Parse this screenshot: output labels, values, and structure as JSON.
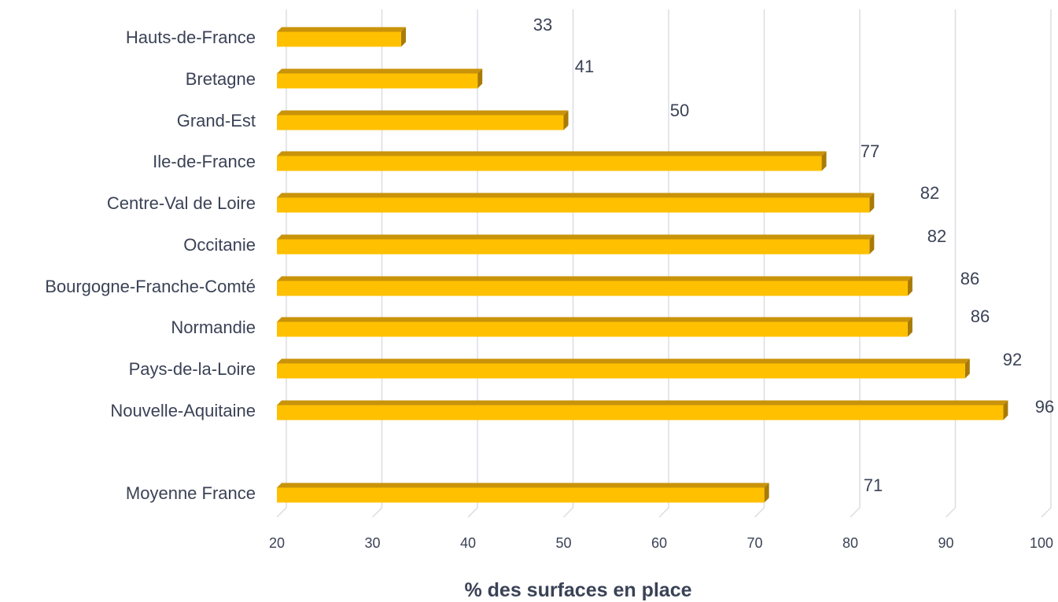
{
  "chart_data": {
    "type": "bar",
    "orientation": "horizontal",
    "categories": [
      "Hauts-de-France",
      "Bretagne",
      "Grand-Est",
      "Ile-de-France",
      "Centre-Val de Loire",
      "Occitanie",
      "Bourgogne-Franche-Comté",
      "Normandie",
      "Pays-de-la-Loire",
      "Nouvelle-Aquitaine",
      "Moyenne France"
    ],
    "values": [
      33,
      41,
      50,
      77,
      82,
      82,
      86,
      86,
      92,
      96,
      71
    ],
    "data_labels": [
      "33",
      "41",
      "50",
      "77",
      "82",
      "82",
      "86",
      "86",
      "92",
      "96",
      "71"
    ],
    "xlim": [
      20,
      100
    ],
    "xticks": [
      "20",
      "30",
      "40",
      "50",
      "60",
      "70",
      "80",
      "90",
      "100"
    ],
    "xlabel": "% des surfaces en place",
    "ylabel": "",
    "title": "",
    "grid": true,
    "legend": "none",
    "colors": {
      "bar_front": "#ffc000",
      "bar_top": "#c9930a",
      "bar_side": "#a87a06",
      "grid": "#dcdde3",
      "text": "#3a4256"
    }
  }
}
